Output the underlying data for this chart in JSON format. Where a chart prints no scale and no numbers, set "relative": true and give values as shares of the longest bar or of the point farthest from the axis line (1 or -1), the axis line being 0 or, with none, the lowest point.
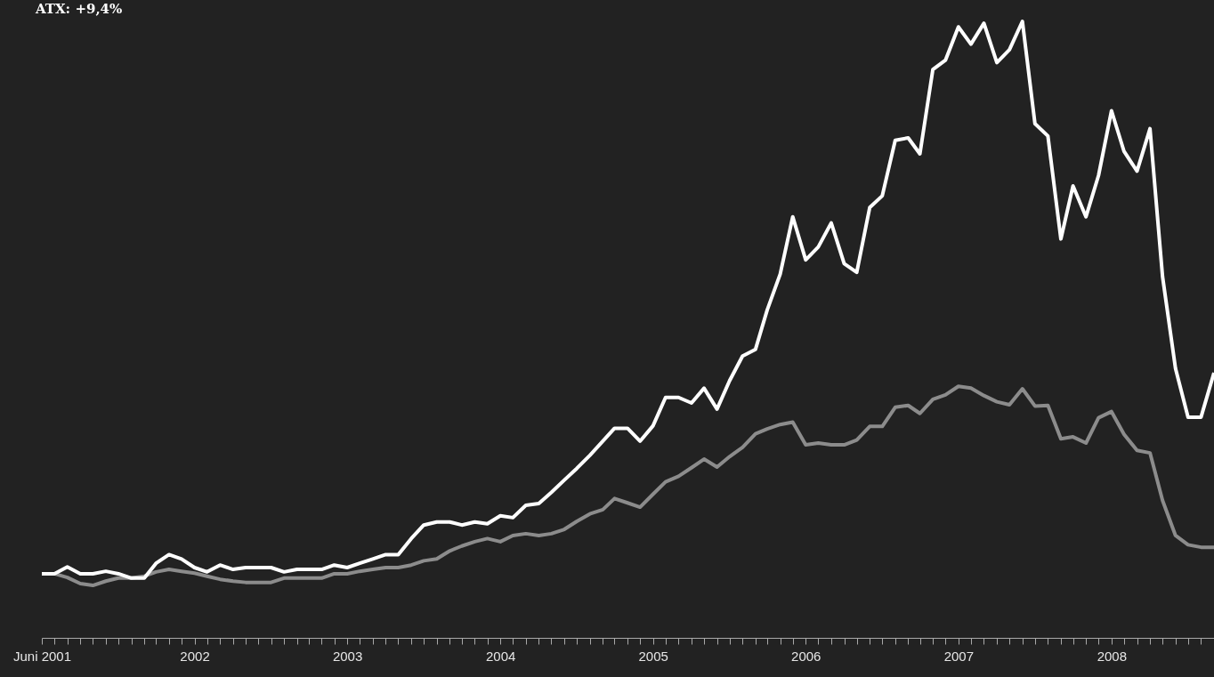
{
  "chart_data": {
    "type": "line",
    "title": "ATX: +9,4%",
    "relative": true,
    "x": [
      "2001-06",
      "2001-07",
      "2001-08",
      "2001-09",
      "2001-10",
      "2001-11",
      "2001-12",
      "2002-01",
      "2002-02",
      "2002-03",
      "2002-04",
      "2002-05",
      "2002-06",
      "2002-07",
      "2002-08",
      "2002-09",
      "2002-10",
      "2002-11",
      "2002-12",
      "2003-01",
      "2003-02",
      "2003-03",
      "2003-04",
      "2003-05",
      "2003-06",
      "2003-07",
      "2003-08",
      "2003-09",
      "2003-10",
      "2003-11",
      "2003-12",
      "2004-01",
      "2004-02",
      "2004-03",
      "2004-04",
      "2004-05",
      "2004-06",
      "2004-07",
      "2004-08",
      "2004-09",
      "2004-10",
      "2004-11",
      "2004-12",
      "2005-01",
      "2005-02",
      "2005-03",
      "2005-04",
      "2005-05",
      "2005-06",
      "2005-07",
      "2005-08",
      "2005-09",
      "2005-10",
      "2005-11",
      "2005-12",
      "2006-01",
      "2006-02",
      "2006-03",
      "2006-04",
      "2006-05",
      "2006-06",
      "2006-07",
      "2006-08",
      "2006-09",
      "2006-10",
      "2006-11",
      "2006-12",
      "2007-01",
      "2007-02",
      "2007-03",
      "2007-04",
      "2007-05",
      "2007-06",
      "2007-07",
      "2007-08",
      "2007-09",
      "2007-10",
      "2007-11",
      "2007-12",
      "2008-01",
      "2008-02",
      "2008-03",
      "2008-04",
      "2008-05",
      "2008-06",
      "2008-07",
      "2008-08",
      "2008-09",
      "2008-10",
      "2008-11",
      "2008-12",
      "2009-01",
      "2009-02"
    ],
    "xlim": [
      "2001-06",
      "2009-02"
    ],
    "xticks": [
      {
        "value": "2001-06",
        "label": "Juni 2001"
      },
      {
        "value": "2001-07",
        "label": null
      },
      {
        "value": "2001-08",
        "label": null
      },
      {
        "value": "2001-09",
        "label": null
      },
      {
        "value": "2001-10",
        "label": null
      },
      {
        "value": "2001-11",
        "label": null
      },
      {
        "value": "2001-12",
        "label": null
      },
      {
        "value": "2002-01",
        "label": null
      },
      {
        "value": "2002-02",
        "label": null
      },
      {
        "value": "2002-03",
        "label": null
      },
      {
        "value": "2002-04",
        "label": null
      },
      {
        "value": "2002-05",
        "label": null
      },
      {
        "value": "2002-06",
        "label": "2002"
      },
      {
        "value": "2002-07",
        "label": null
      },
      {
        "value": "2002-08",
        "label": null
      },
      {
        "value": "2002-09",
        "label": null
      },
      {
        "value": "2002-10",
        "label": null
      },
      {
        "value": "2002-11",
        "label": null
      },
      {
        "value": "2002-12",
        "label": null
      },
      {
        "value": "2003-01",
        "label": null
      },
      {
        "value": "2003-02",
        "label": null
      },
      {
        "value": "2003-03",
        "label": null
      },
      {
        "value": "2003-04",
        "label": null
      },
      {
        "value": "2003-05",
        "label": null
      },
      {
        "value": "2003-06",
        "label": "2003"
      },
      {
        "value": "2003-07",
        "label": null
      },
      {
        "value": "2003-08",
        "label": null
      },
      {
        "value": "2003-09",
        "label": null
      },
      {
        "value": "2003-10",
        "label": null
      },
      {
        "value": "2003-11",
        "label": null
      },
      {
        "value": "2003-12",
        "label": null
      },
      {
        "value": "2004-01",
        "label": null
      },
      {
        "value": "2004-02",
        "label": null
      },
      {
        "value": "2004-03",
        "label": null
      },
      {
        "value": "2004-04",
        "label": null
      },
      {
        "value": "2004-05",
        "label": null
      },
      {
        "value": "2004-06",
        "label": "2004"
      },
      {
        "value": "2004-07",
        "label": null
      },
      {
        "value": "2004-08",
        "label": null
      },
      {
        "value": "2004-09",
        "label": null
      },
      {
        "value": "2004-10",
        "label": null
      },
      {
        "value": "2004-11",
        "label": null
      },
      {
        "value": "2004-12",
        "label": null
      },
      {
        "value": "2005-01",
        "label": null
      },
      {
        "value": "2005-02",
        "label": null
      },
      {
        "value": "2005-03",
        "label": null
      },
      {
        "value": "2005-04",
        "label": null
      },
      {
        "value": "2005-05",
        "label": null
      },
      {
        "value": "2005-06",
        "label": "2005"
      },
      {
        "value": "2005-07",
        "label": null
      },
      {
        "value": "2005-08",
        "label": null
      },
      {
        "value": "2005-09",
        "label": null
      },
      {
        "value": "2005-10",
        "label": null
      },
      {
        "value": "2005-11",
        "label": null
      },
      {
        "value": "2005-12",
        "label": null
      },
      {
        "value": "2006-01",
        "label": null
      },
      {
        "value": "2006-02",
        "label": null
      },
      {
        "value": "2006-03",
        "label": null
      },
      {
        "value": "2006-04",
        "label": null
      },
      {
        "value": "2006-05",
        "label": null
      },
      {
        "value": "2006-06",
        "label": "2006"
      },
      {
        "value": "2006-07",
        "label": null
      },
      {
        "value": "2006-08",
        "label": null
      },
      {
        "value": "2006-09",
        "label": null
      },
      {
        "value": "2006-10",
        "label": null
      },
      {
        "value": "2006-11",
        "label": null
      },
      {
        "value": "2006-12",
        "label": null
      },
      {
        "value": "2007-01",
        "label": null
      },
      {
        "value": "2007-02",
        "label": null
      },
      {
        "value": "2007-03",
        "label": null
      },
      {
        "value": "2007-04",
        "label": null
      },
      {
        "value": "2007-05",
        "label": null
      },
      {
        "value": "2007-06",
        "label": "2007"
      },
      {
        "value": "2007-07",
        "label": null
      },
      {
        "value": "2007-08",
        "label": null
      },
      {
        "value": "2007-09",
        "label": null
      },
      {
        "value": "2007-10",
        "label": null
      },
      {
        "value": "2007-11",
        "label": null
      },
      {
        "value": "2007-12",
        "label": null
      },
      {
        "value": "2008-01",
        "label": null
      },
      {
        "value": "2008-02",
        "label": null
      },
      {
        "value": "2008-03",
        "label": null
      },
      {
        "value": "2008-04",
        "label": null
      },
      {
        "value": "2008-05",
        "label": null
      },
      {
        "value": "2008-06",
        "label": "2008"
      },
      {
        "value": "2008-07",
        "label": null
      },
      {
        "value": "2008-08",
        "label": null
      },
      {
        "value": "2008-09",
        "label": null
      },
      {
        "value": "2008-10",
        "label": null
      },
      {
        "value": "2008-11",
        "label": null
      },
      {
        "value": "2008-12",
        "label": null
      },
      {
        "value": "2009-01",
        "label": null
      },
      {
        "value": "2009-02",
        "label": null
      }
    ],
    "series": [
      {
        "color": "#8c8c8c",
        "values": [
          0.104,
          0.104,
          0.098,
          0.088,
          0.085,
          0.092,
          0.097,
          0.097,
          0.1,
          0.107,
          0.111,
          0.108,
          0.105,
          0.1,
          0.095,
          0.092,
          0.09,
          0.09,
          0.09,
          0.097,
          0.097,
          0.097,
          0.097,
          0.104,
          0.104,
          0.108,
          0.111,
          0.114,
          0.114,
          0.118,
          0.125,
          0.128,
          0.141,
          0.149,
          0.156,
          0.161,
          0.156,
          0.166,
          0.169,
          0.166,
          0.169,
          0.176,
          0.189,
          0.201,
          0.208,
          0.226,
          0.219,
          0.212,
          0.233,
          0.253,
          0.262,
          0.276,
          0.29,
          0.277,
          0.294,
          0.309,
          0.331,
          0.339,
          0.346,
          0.35,
          0.313,
          0.316,
          0.313,
          0.313,
          0.321,
          0.343,
          0.343,
          0.374,
          0.377,
          0.364,
          0.387,
          0.394,
          0.408,
          0.405,
          0.393,
          0.383,
          0.378,
          0.404,
          0.376,
          0.377,
          0.323,
          0.326,
          0.316,
          0.357,
          0.367,
          0.33,
          0.304,
          0.3,
          0.223,
          0.166,
          0.151,
          0.147,
          0.147
        ]
      },
      {
        "color": "#ffffff",
        "values": [
          0.104,
          0.104,
          0.115,
          0.104,
          0.104,
          0.108,
          0.104,
          0.097,
          0.097,
          0.121,
          0.135,
          0.128,
          0.114,
          0.107,
          0.118,
          0.111,
          0.114,
          0.114,
          0.114,
          0.107,
          0.111,
          0.111,
          0.111,
          0.118,
          0.114,
          0.121,
          0.128,
          0.135,
          0.135,
          0.161,
          0.183,
          0.188,
          0.188,
          0.183,
          0.188,
          0.185,
          0.198,
          0.195,
          0.215,
          0.218,
          0.236,
          0.256,
          0.275,
          0.296,
          0.319,
          0.34,
          0.34,
          0.319,
          0.344,
          0.39,
          0.39,
          0.381,
          0.405,
          0.371,
          0.417,
          0.457,
          0.468,
          0.532,
          0.59,
          0.683,
          0.613,
          0.634,
          0.673,
          0.607,
          0.593,
          0.698,
          0.717,
          0.807,
          0.811,
          0.785,
          0.922,
          0.937,
          0.991,
          0.963,
          0.997,
          0.933,
          0.954,
          1,
          0.834,
          0.814,
          0.647,
          0.733,
          0.683,
          0.75,
          0.855,
          0.789,
          0.757,
          0.826,
          0.586,
          0.437,
          0.358,
          0.358,
          0.43
        ]
      }
    ]
  }
}
